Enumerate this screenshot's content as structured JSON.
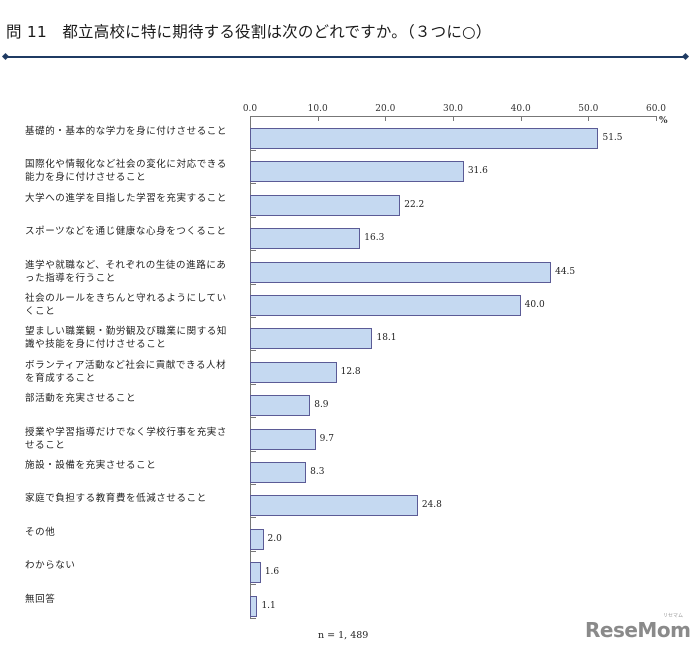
{
  "header": {
    "question_no": "問 11",
    "question_text": "都立高校に特に期待する役割は次のどれですか。（３つに○）"
  },
  "axis": {
    "ticks": [
      "0.0",
      "10.0",
      "20.0",
      "30.0",
      "40.0",
      "50.0",
      "60.0"
    ],
    "unit": "%"
  },
  "footer": {
    "sample_size": "n = 1, 489",
    "logo": "ReseMom",
    "logo_sub": "リセマム"
  },
  "colors": {
    "bar_fill": "#c5d9f1",
    "bar_border": "#5b5b96",
    "rule": "#1f3b63"
  },
  "chart_data": {
    "type": "bar",
    "orientation": "horizontal",
    "title": "問 11　都立高校に特に期待する役割は次のどれですか。（３つに○）",
    "xlabel": "%",
    "ylabel": "",
    "xlim": [
      0,
      60
    ],
    "grid": false,
    "legend": null,
    "annotations": [
      "n = 1,489"
    ],
    "categories": [
      "基礎的・基本的な学力を身に付けさせること",
      "国際化や情報化など社会の変化に対応できる能力を身に付けさせること",
      "大学への進学を目指した学習を充実すること",
      "スポーツなどを通じ健康な心身をつくること",
      "進学や就職など、それぞれの生徒の進路にあった指導を行うこと",
      "社会のルールをきちんと守れるようにしていくこと",
      "望ましい職業観・勤労観及び職業に関する知識や技能を身に付けさせること",
      "ボランティア活動など社会に貢献できる人材を育成すること",
      "部活動を充実させること",
      "授業や学習指導だけでなく学校行事を充実させること",
      "施設・設備を充実させること",
      "家庭で負担する教育費を低減させること",
      "その他",
      "わからない",
      "無回答"
    ],
    "values": [
      51.5,
      31.6,
      22.2,
      16.3,
      44.5,
      40.0,
      18.1,
      12.8,
      8.9,
      9.7,
      8.3,
      24.8,
      2.0,
      1.6,
      1.1
    ],
    "value_labels": [
      "51.5",
      "31.6",
      "22.2",
      "16.3",
      "44.5",
      "40.0",
      "18.1",
      "12.8",
      "8.9",
      "9.7",
      "8.3",
      "24.8",
      "2.0",
      "1.6",
      "1.1"
    ]
  },
  "rows": [
    {
      "label_line1": "基礎的・基本的な学力を身に付けさせること",
      "label_line2": "",
      "value": "51.5"
    },
    {
      "label_line1": "国際化や情報化など社会の変化に対応できる",
      "label_line2": "能力を身に付けさせること",
      "value": "31.6"
    },
    {
      "label_line1": "大学への進学を目指した学習を充実すること",
      "label_line2": "",
      "value": "22.2"
    },
    {
      "label_line1": "スポーツなどを通じ健康な心身をつくること",
      "label_line2": "",
      "value": "16.3"
    },
    {
      "label_line1": "進学や就職など、それぞれの生徒の進路にあ",
      "label_line2": "った指導を行うこと",
      "value": "44.5"
    },
    {
      "label_line1": "社会のルールをきちんと守れるようにしてい",
      "label_line2": "くこと",
      "value": "40.0"
    },
    {
      "label_line1": "望ましい職業観・勤労観及び職業に関する知",
      "label_line2": "識や技能を身に付けさせること",
      "value": "18.1"
    },
    {
      "label_line1": "ボランティア活動など社会に貢献できる人材",
      "label_line2": "を育成すること",
      "value": "12.8"
    },
    {
      "label_line1": "部活動を充実させること",
      "label_line2": "",
      "value": "8.9"
    },
    {
      "label_line1": "授業や学習指導だけでなく学校行事を充実さ",
      "label_line2": "せること",
      "value": "9.7"
    },
    {
      "label_line1": "施設・設備を充実させること",
      "label_line2": "",
      "value": "8.3"
    },
    {
      "label_line1": "家庭で負担する教育費を低減させること",
      "label_line2": "",
      "value": "24.8"
    },
    {
      "label_line1": "その他",
      "label_line2": "",
      "value": "2.0"
    },
    {
      "label_line1": "わからない",
      "label_line2": "",
      "value": "1.6"
    },
    {
      "label_line1": "無回答",
      "label_line2": "",
      "value": "1.1"
    }
  ]
}
